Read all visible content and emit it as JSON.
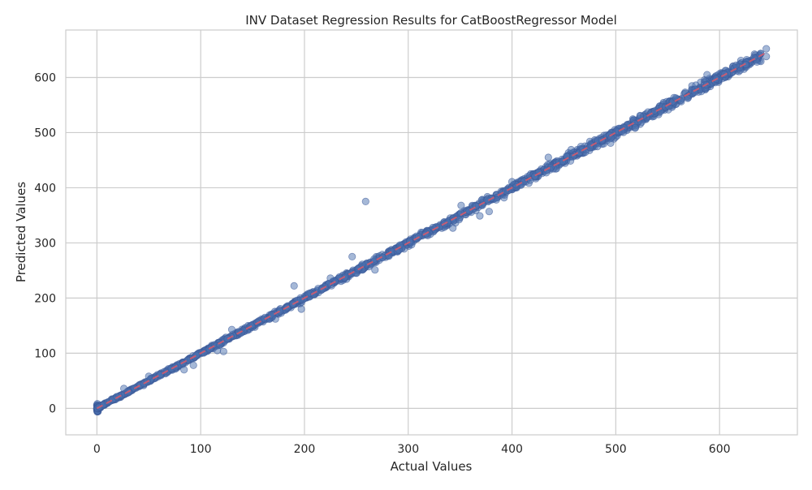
{
  "chart_data": {
    "type": "scatter",
    "title": "INV Dataset Regression Results for CatBoostRegressor Model",
    "xlabel": "Actual Values",
    "ylabel": "Predicted Values",
    "xlim": [
      -30,
      675
    ],
    "ylim": [
      -48,
      686
    ],
    "xticks": [
      0,
      100,
      200,
      300,
      400,
      500,
      600
    ],
    "yticks": [
      0,
      100,
      200,
      300,
      400,
      500,
      600
    ],
    "grid": true,
    "legend": "none",
    "colors": {
      "points": "#4c72b0",
      "points_edge": "#3b5998",
      "reference_line": "#dd5a6a",
      "grid": "#cccccc"
    },
    "reference_line": {
      "style": "dashed",
      "x": [
        0,
        645
      ],
      "y": [
        0,
        645
      ]
    },
    "outliers": [
      {
        "x": 259,
        "y": 375
      },
      {
        "x": 190,
        "y": 222
      },
      {
        "x": 246,
        "y": 275
      },
      {
        "x": 435,
        "y": 455
      },
      {
        "x": 130,
        "y": 143
      },
      {
        "x": 351,
        "y": 368
      },
      {
        "x": 378,
        "y": 357
      },
      {
        "x": 369,
        "y": 349
      },
      {
        "x": 495,
        "y": 481
      },
      {
        "x": 197,
        "y": 180
      },
      {
        "x": 122,
        "y": 103
      },
      {
        "x": 84,
        "y": 70
      },
      {
        "x": 93,
        "y": 78
      },
      {
        "x": 268,
        "y": 251
      },
      {
        "x": 225,
        "y": 236
      },
      {
        "x": 343,
        "y": 327
      },
      {
        "x": 588,
        "y": 605
      },
      {
        "x": 645,
        "y": 652
      },
      {
        "x": 645,
        "y": 638
      },
      {
        "x": 636,
        "y": 628
      },
      {
        "x": 616,
        "y": 622
      },
      {
        "x": 633,
        "y": 636
      },
      {
        "x": 605,
        "y": 606
      },
      {
        "x": 26,
        "y": 36
      },
      {
        "x": 50,
        "y": 58
      },
      {
        "x": 400,
        "y": 411
      },
      {
        "x": 172,
        "y": 162
      },
      {
        "x": 116,
        "y": 105
      },
      {
        "x": 457,
        "y": 469
      },
      {
        "x": 519,
        "y": 509
      }
    ]
  }
}
